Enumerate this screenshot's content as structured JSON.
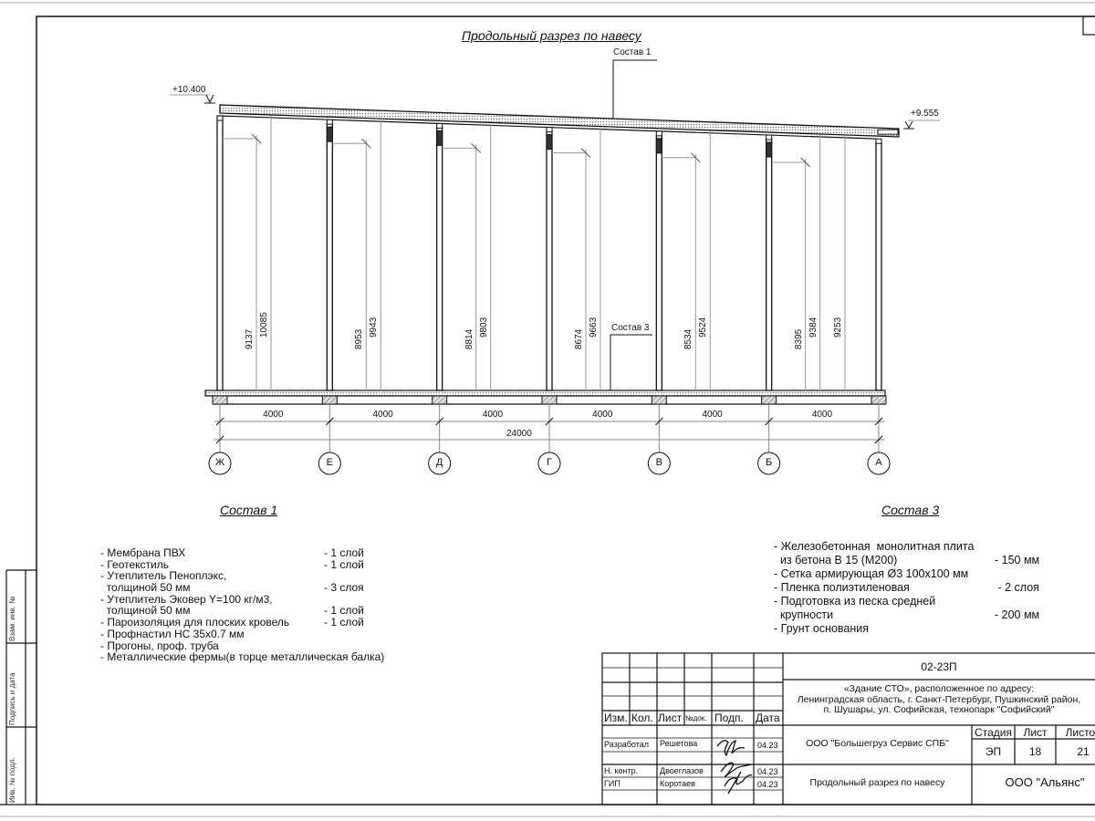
{
  "drawing": {
    "title": "Продольный разрез по навесу",
    "roof_callout": "Состав 1",
    "floor_callout": "Состав 3",
    "elevation_left": "+10.400",
    "elevation_right": "+9.555",
    "axes": [
      "Ж",
      "Е",
      "Д",
      "Г",
      "В",
      "Б",
      "А"
    ],
    "column_dims": [
      {
        "axis": "Ж",
        "short": "9137",
        "long": "10085"
      },
      {
        "axis": "Е",
        "short": "8953",
        "long": "9943"
      },
      {
        "axis": "Д",
        "short": "8814",
        "long": "9803"
      },
      {
        "axis": "Г",
        "short": "8674",
        "long": "9663"
      },
      {
        "axis": "В",
        "short": "8534",
        "long": "9524"
      },
      {
        "axis": "Б",
        "short": "8395",
        "long": "9384"
      },
      {
        "axis": "А",
        "short": null,
        "long": "9253"
      }
    ],
    "spans": [
      "4000",
      "4000",
      "4000",
      "4000",
      "4000",
      "4000"
    ],
    "total_span": "24000"
  },
  "sostav1": {
    "heading": "Состав 1",
    "items": [
      {
        "text": "- Мембрана ПВХ",
        "amount": "- 1 слой"
      },
      {
        "text": "- Геотекстиль",
        "amount": "- 1 слой"
      },
      {
        "text": "- Утеплитель Пеноплэкс,",
        "amount": ""
      },
      {
        "text": "  толщиной 50 мм",
        "amount": "- 3 слоя"
      },
      {
        "text": "- Утеплитель Эковер Y=100 кг/м3,",
        "amount": ""
      },
      {
        "text": "  толщиной 50 мм",
        "amount": "- 1 слой"
      },
      {
        "text": "- Пароизоляция для плоских кровель",
        "amount": "- 1 слой"
      },
      {
        "text": "- Профнастил НС 35х0.7 мм",
        "amount": ""
      },
      {
        "text": "- Прогоны, проф. труба",
        "amount": ""
      },
      {
        "text": "- Металлические фермы(в торце металлическая балка)",
        "amount": ""
      }
    ]
  },
  "sostav3": {
    "heading": "Состав 3",
    "items": [
      {
        "text": "- Железобетонная  монолитная плита",
        "amount": ""
      },
      {
        "text": "  из бетона В 15 (М200)",
        "amount": "- 150 мм"
      },
      {
        "text": "- Сетка армирующая Ø3 100х100 мм",
        "amount": ""
      },
      {
        "text": "- Пленка полиэтиленовая",
        "amount": " - 2 слоя"
      },
      {
        "text": "- Подготовка из песка средней",
        "amount": ""
      },
      {
        "text": "  крупности",
        "amount": "- 200 мм"
      },
      {
        "text": "- Грунт основания",
        "amount": ""
      }
    ]
  },
  "title_block": {
    "code": "02-23П",
    "address_lines": [
      "«Здание СТО», расположенное по адресу:",
      "Ленинградская область, г. Санкт-Петербург, Пушкинский район,",
      "п. Шушары, ул. Софийская, технопарк \"Софийский\""
    ],
    "headers": {
      "izm": "Изм.",
      "kol": "Кол.",
      "list": "Лист",
      "ndok": "№док.",
      "podp": "Подп.",
      "data": "Дата"
    },
    "people": [
      {
        "role": "Разработал",
        "name": "Решетова",
        "date": "04.23"
      },
      {
        "role": "Н. контр.",
        "name": "Двоеглазов",
        "date": "04.23"
      },
      {
        "role": "ГИП",
        "name": "Коротаев",
        "date": "04.23"
      }
    ],
    "customer": "ООО \"Большегруз Сервис СПБ\"",
    "stage_label": "Стадия",
    "sheet_label": "Лист",
    "sheets_label": "Листов",
    "stage": "ЭП",
    "sheet": "18",
    "sheets": "21",
    "sheet_title": "Продольный разрез по навесу",
    "organization": "ООО \"Альянс\""
  },
  "stamps": {
    "replace_inv": "Взам. инв. №",
    "sign_date": "Подпись и дата",
    "inv_orig": "Инв. № подл."
  }
}
